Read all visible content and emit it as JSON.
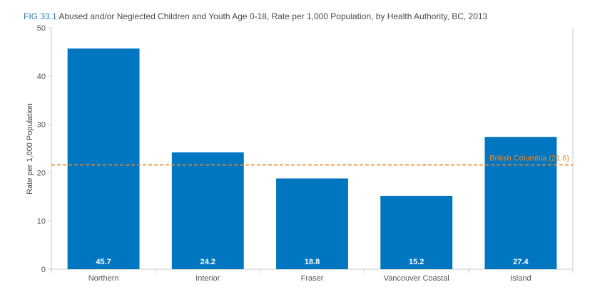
{
  "header": {
    "fig_label": "FIG 33.1",
    "title": "Abused and/or Neglected Children and Youth Age 0-18, Rate per 1,000 Population, by Health Authority, BC, 2013"
  },
  "colors": {
    "bar": "#0076c0",
    "reference_line": "#e58a2c",
    "axis": "#c8c8c8",
    "fig_label": "#2a7ab0"
  },
  "chart_data": {
    "type": "bar",
    "categories": [
      "Northern",
      "Interior",
      "Fraser",
      "Vancouver Coastal",
      "Island"
    ],
    "values": [
      45.7,
      24.2,
      18.8,
      15.2,
      27.4
    ],
    "value_labels": [
      "45.7",
      "24.2",
      "18.8",
      "15.2",
      "27.4"
    ],
    "title": "Abused and/or Neglected Children and Youth Age 0-18, Rate per 1,000 Population, by Health Authority, BC, 2013",
    "xlabel": "",
    "ylabel": "Rate per 1,000 Population",
    "ylim": [
      0,
      50
    ],
    "yticks": [
      0,
      10,
      20,
      30,
      40,
      50
    ],
    "reference_line": {
      "value": 21.6,
      "label": "British Columbia (21.6)"
    },
    "grid": false,
    "legend": "none"
  }
}
